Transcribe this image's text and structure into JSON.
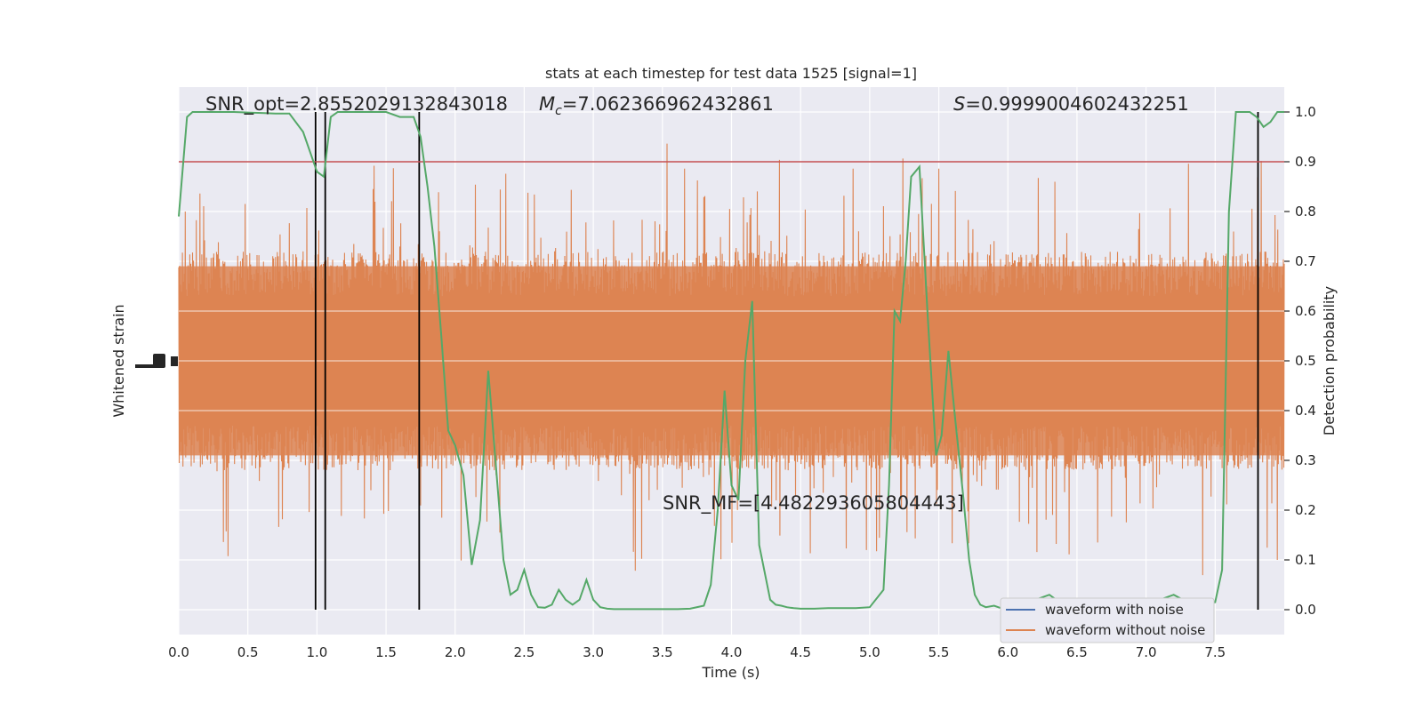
{
  "chart_data": {
    "type": "line",
    "title": "stats at each timestep for test data 1525 [signal=1]",
    "xlabel": "Time (s)",
    "ylabel_left": "Whitened strain",
    "ylabel_right": "Detection probability",
    "xlim": [
      0.0,
      8.0
    ],
    "ylim_right": [
      -0.05,
      1.05
    ],
    "x_ticks": [
      "0.0",
      "0.5",
      "1.0",
      "1.5",
      "2.0",
      "2.5",
      "3.0",
      "3.5",
      "4.0",
      "4.5",
      "5.0",
      "5.5",
      "6.0",
      "6.5",
      "7.0",
      "7.5"
    ],
    "x_tick_values": [
      0,
      0.5,
      1,
      1.5,
      2,
      2.5,
      3,
      3.5,
      4,
      4.5,
      5,
      5.5,
      6,
      6.5,
      7,
      7.5
    ],
    "y_ticks_right": [
      "0.0",
      "0.1",
      "0.2",
      "0.3",
      "0.4",
      "0.5",
      "0.6",
      "0.7",
      "0.8",
      "0.9",
      "1.0"
    ],
    "y_tick_values_right": [
      0,
      0.1,
      0.2,
      0.3,
      0.4,
      0.5,
      0.6,
      0.7,
      0.8,
      0.9,
      1.0
    ],
    "annotations": {
      "snr_opt": "SNR_opt=2.8552029132843018",
      "mc_symbol": "M",
      "mc_sub": "c",
      "mc_value": "=7.062366962432861",
      "s_symbol": "S",
      "s_value": "=0.9999004602432251",
      "snr_mf": "SNR_MF=[4.482293605804443]"
    },
    "threshold": 0.9,
    "vertical_lines_x": [
      0.99,
      1.06,
      1.74,
      7.81
    ],
    "legend": {
      "placement": "bottom-right",
      "entries": [
        {
          "label": "waveform with noise",
          "color": "#4c72b0"
        },
        {
          "label": "waveform without noise",
          "color": "#dd8452"
        }
      ]
    },
    "series": [
      {
        "name": "waveform without noise",
        "kind": "strain",
        "color": "#dd8452",
        "note": "dense noise band centred at 0.5 on the probability scale, core roughly 0.3–0.7, spikes to ~0.08–1.0"
      },
      {
        "kind": "probability",
        "color": "#55a868",
        "x": [
          0.0,
          0.06,
          0.1,
          0.2,
          0.3,
          0.4,
          0.5,
          0.6,
          0.7,
          0.8,
          0.9,
          0.95,
          1.0,
          1.05,
          1.1,
          1.15,
          1.3,
          1.5,
          1.6,
          1.7,
          1.75,
          1.8,
          1.85,
          1.9,
          1.95,
          2.0,
          2.06,
          2.12,
          2.18,
          2.24,
          2.28,
          2.35,
          2.4,
          2.45,
          2.5,
          2.55,
          2.6,
          2.65,
          2.7,
          2.75,
          2.8,
          2.85,
          2.9,
          2.95,
          3.0,
          3.05,
          3.1,
          3.15,
          3.2,
          3.3,
          3.4,
          3.5,
          3.6,
          3.7,
          3.8,
          3.85,
          3.9,
          3.95,
          4.0,
          4.05,
          4.1,
          4.15,
          4.2,
          4.28,
          4.32,
          4.36,
          4.4,
          4.45,
          4.5,
          4.6,
          4.7,
          4.8,
          4.9,
          5.0,
          5.1,
          5.14,
          5.18,
          5.22,
          5.26,
          5.3,
          5.36,
          5.42,
          5.48,
          5.52,
          5.57,
          5.62,
          5.68,
          5.72,
          5.76,
          5.8,
          5.84,
          5.9,
          5.95,
          6.0,
          6.05,
          6.1,
          6.2,
          6.3,
          6.4,
          6.5,
          6.6,
          6.7,
          6.8,
          6.9,
          7.0,
          7.1,
          7.2,
          7.3,
          7.4,
          7.5,
          7.55,
          7.6,
          7.65,
          7.7,
          7.75,
          7.8,
          7.85,
          7.9,
          7.95,
          8.0
        ],
        "y": [
          0.79,
          0.99,
          1.0,
          1.0,
          1.0,
          1.0,
          0.999,
          0.998,
          0.997,
          0.997,
          0.96,
          0.92,
          0.88,
          0.87,
          0.99,
          1.0,
          1.0,
          1.0,
          0.99,
          0.99,
          0.95,
          0.85,
          0.73,
          0.55,
          0.36,
          0.33,
          0.27,
          0.09,
          0.18,
          0.48,
          0.34,
          0.1,
          0.03,
          0.04,
          0.08,
          0.03,
          0.005,
          0.004,
          0.01,
          0.04,
          0.02,
          0.01,
          0.02,
          0.06,
          0.02,
          0.005,
          0.002,
          0.001,
          0.001,
          0.001,
          0.001,
          0.001,
          0.001,
          0.002,
          0.008,
          0.05,
          0.2,
          0.44,
          0.25,
          0.22,
          0.5,
          0.62,
          0.13,
          0.02,
          0.01,
          0.008,
          0.005,
          0.003,
          0.002,
          0.002,
          0.003,
          0.003,
          0.003,
          0.005,
          0.04,
          0.25,
          0.6,
          0.58,
          0.7,
          0.87,
          0.89,
          0.59,
          0.31,
          0.35,
          0.52,
          0.38,
          0.22,
          0.1,
          0.03,
          0.01,
          0.005,
          0.008,
          0.003,
          0.004,
          0.01,
          0.01,
          0.02,
          0.03,
          0.01,
          0.015,
          0.02,
          0.01,
          0.01,
          0.005,
          0.01,
          0.02,
          0.03,
          0.015,
          0.01,
          0.015,
          0.08,
          0.8,
          1.0,
          1.0,
          1.0,
          0.99,
          0.97,
          0.98,
          1.0,
          1.0
        ]
      }
    ]
  }
}
